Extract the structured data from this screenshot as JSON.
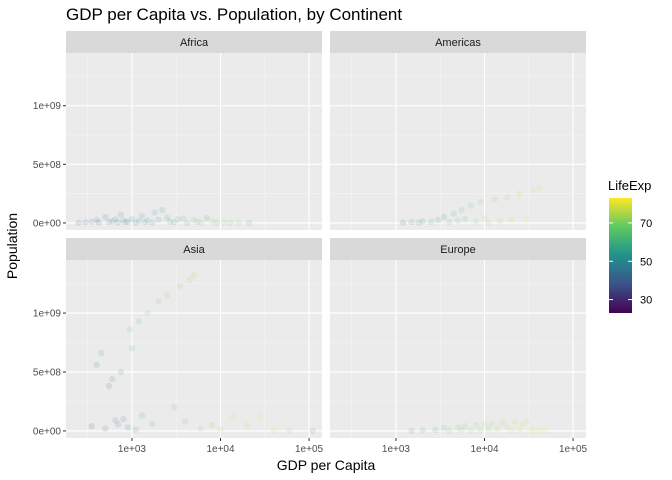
{
  "chart_data": {
    "type": "scatter",
    "title": "GDP per Capita vs. Population, by Continent",
    "xlabel": "GDP per Capita",
    "ylabel": "Population",
    "x_scale": "log10",
    "xlim": [
      180,
      140000
    ],
    "ylim": [
      -60000000,
      1450000000
    ],
    "x_ticks": [
      1000,
      10000,
      100000
    ],
    "x_tick_labels": [
      "1e+03",
      "1e+04",
      "1e+05"
    ],
    "y_ticks": [
      0,
      500000000,
      1000000000
    ],
    "y_tick_labels": [
      "0e+00",
      "5e+08",
      "1e+09"
    ],
    "grid": true,
    "point_alpha": 0.12,
    "legend": {
      "title": "LifeExp",
      "placement": "right",
      "type": "colorbar",
      "palette": "viridis",
      "range": [
        23,
        83
      ],
      "breaks": [
        30,
        50,
        70
      ],
      "colors": [
        "#440154",
        "#3b528b",
        "#21918c",
        "#5ec962",
        "#fde725"
      ]
    },
    "panels": [
      {
        "name": "Africa",
        "points": [
          {
            "x": 250,
            "y": 3200000,
            "life": 38
          },
          {
            "x": 300,
            "y": 6500000,
            "life": 40
          },
          {
            "x": 350,
            "y": 12000000,
            "life": 42
          },
          {
            "x": 400,
            "y": 25000000,
            "life": 44
          },
          {
            "x": 420,
            "y": 5000000,
            "life": 39
          },
          {
            "x": 500,
            "y": 50000000,
            "life": 45
          },
          {
            "x": 550,
            "y": 9000000,
            "life": 46
          },
          {
            "x": 600,
            "y": 15000000,
            "life": 47
          },
          {
            "x": 650,
            "y": 30000000,
            "life": 48
          },
          {
            "x": 700,
            "y": 4000000,
            "life": 43
          },
          {
            "x": 750,
            "y": 70000000,
            "life": 46
          },
          {
            "x": 800,
            "y": 20000000,
            "life": 50
          },
          {
            "x": 850,
            "y": 8000000,
            "life": 48
          },
          {
            "x": 900,
            "y": 11000000,
            "life": 49
          },
          {
            "x": 1000,
            "y": 35000000,
            "life": 51
          },
          {
            "x": 1100,
            "y": 2500000,
            "life": 47
          },
          {
            "x": 1200,
            "y": 18000000,
            "life": 52
          },
          {
            "x": 1300,
            "y": 60000000,
            "life": 53
          },
          {
            "x": 1400,
            "y": 7000000,
            "life": 50
          },
          {
            "x": 1500,
            "y": 22000000,
            "life": 54
          },
          {
            "x": 1700,
            "y": 3000000,
            "life": 52
          },
          {
            "x": 1800,
            "y": 90000000,
            "life": 49
          },
          {
            "x": 2000,
            "y": 28000000,
            "life": 55
          },
          {
            "x": 2200,
            "y": 110000000,
            "life": 47
          },
          {
            "x": 2500,
            "y": 45000000,
            "life": 56
          },
          {
            "x": 2700,
            "y": 12000000,
            "life": 58
          },
          {
            "x": 3000,
            "y": 5000000,
            "life": 59
          },
          {
            "x": 3300,
            "y": 31000000,
            "life": 62
          },
          {
            "x": 3800,
            "y": 40000000,
            "life": 64
          },
          {
            "x": 4200,
            "y": 1500000,
            "life": 60
          },
          {
            "x": 5000,
            "y": 25000000,
            "life": 66
          },
          {
            "x": 5500,
            "y": 9000000,
            "life": 65
          },
          {
            "x": 6000,
            "y": 2000000,
            "life": 68
          },
          {
            "x": 7000,
            "y": 43000000,
            "life": 53
          },
          {
            "x": 8000,
            "y": 15000000,
            "life": 70
          },
          {
            "x": 9000,
            "y": 1200000,
            "life": 62
          },
          {
            "x": 11000,
            "y": 5500000,
            "life": 72
          },
          {
            "x": 13000,
            "y": 1000000,
            "life": 67
          },
          {
            "x": 16000,
            "y": 700000,
            "life": 72
          },
          {
            "x": 21000,
            "y": 600000,
            "life": 58
          }
        ]
      },
      {
        "name": "Americas",
        "points": [
          {
            "x": 1200,
            "y": 3000000,
            "life": 40
          },
          {
            "x": 1500,
            "y": 8000000,
            "life": 46
          },
          {
            "x": 1800,
            "y": 4000000,
            "life": 50
          },
          {
            "x": 2000,
            "y": 15000000,
            "life": 51
          },
          {
            "x": 2500,
            "y": 10000000,
            "life": 55
          },
          {
            "x": 3000,
            "y": 25000000,
            "life": 56
          },
          {
            "x": 3500,
            "y": 53000000,
            "life": 52
          },
          {
            "x": 4000,
            "y": 7000000,
            "life": 60
          },
          {
            "x": 4500,
            "y": 80000000,
            "life": 57
          },
          {
            "x": 5000,
            "y": 20000000,
            "life": 62
          },
          {
            "x": 5500,
            "y": 110000000,
            "life": 62
          },
          {
            "x": 6000,
            "y": 35000000,
            "life": 65
          },
          {
            "x": 7000,
            "y": 150000000,
            "life": 66
          },
          {
            "x": 8000,
            "y": 12000000,
            "life": 69
          },
          {
            "x": 9000,
            "y": 180000000,
            "life": 71
          },
          {
            "x": 10000,
            "y": 40000000,
            "life": 72
          },
          {
            "x": 11000,
            "y": 3500000,
            "life": 74
          },
          {
            "x": 13000,
            "y": 200000000,
            "life": 72
          },
          {
            "x": 15000,
            "y": 15000000,
            "life": 75
          },
          {
            "x": 18000,
            "y": 220000000,
            "life": 74
          },
          {
            "x": 20000,
            "y": 28000000,
            "life": 78
          },
          {
            "x": 25000,
            "y": 250000000,
            "life": 76
          },
          {
            "x": 30000,
            "y": 32000000,
            "life": 80
          },
          {
            "x": 36000,
            "y": 280000000,
            "life": 77
          },
          {
            "x": 42000,
            "y": 300000000,
            "life": 78
          }
        ]
      },
      {
        "name": "Asia",
        "points": [
          {
            "x": 350,
            "y": 40000000,
            "life": 32
          },
          {
            "x": 400,
            "y": 560000000,
            "life": 45
          },
          {
            "x": 450,
            "y": 660000000,
            "life": 50
          },
          {
            "x": 500,
            "y": 20000000,
            "life": 40
          },
          {
            "x": 550,
            "y": 380000000,
            "life": 38
          },
          {
            "x": 600,
            "y": 440000000,
            "life": 45
          },
          {
            "x": 650,
            "y": 90000000,
            "life": 43
          },
          {
            "x": 700,
            "y": 55000000,
            "life": 44
          },
          {
            "x": 750,
            "y": 500000000,
            "life": 50
          },
          {
            "x": 800,
            "y": 100000000,
            "life": 42
          },
          {
            "x": 900,
            "y": 30000000,
            "life": 48
          },
          {
            "x": 950,
            "y": 860000000,
            "life": 63
          },
          {
            "x": 1000,
            "y": 700000000,
            "life": 60
          },
          {
            "x": 1100,
            "y": 10000000,
            "life": 50
          },
          {
            "x": 1200,
            "y": 930000000,
            "life": 65
          },
          {
            "x": 1300,
            "y": 130000000,
            "life": 55
          },
          {
            "x": 1500,
            "y": 1000000000,
            "life": 67
          },
          {
            "x": 1700,
            "y": 60000000,
            "life": 58
          },
          {
            "x": 2000,
            "y": 1100000000,
            "life": 68
          },
          {
            "x": 2500,
            "y": 1150000000,
            "life": 70
          },
          {
            "x": 3000,
            "y": 200000000,
            "life": 62
          },
          {
            "x": 3500,
            "y": 1230000000,
            "life": 71
          },
          {
            "x": 4000,
            "y": 80000000,
            "life": 65
          },
          {
            "x": 4500,
            "y": 1280000000,
            "life": 72
          },
          {
            "x": 5000,
            "y": 1320000000,
            "life": 73
          },
          {
            "x": 6000,
            "y": 20000000,
            "life": 70
          },
          {
            "x": 8000,
            "y": 50000000,
            "life": 71
          },
          {
            "x": 10000,
            "y": 15000000,
            "life": 74
          },
          {
            "x": 14000,
            "y": 120000000,
            "life": 78
          },
          {
            "x": 20000,
            "y": 45000000,
            "life": 76
          },
          {
            "x": 28000,
            "y": 125000000,
            "life": 80
          },
          {
            "x": 40000,
            "y": 5000000,
            "life": 78
          },
          {
            "x": 60000,
            "y": 2000000,
            "life": 75
          },
          {
            "x": 110000,
            "y": 1000000,
            "life": 58
          }
        ]
      },
      {
        "name": "Europe",
        "points": [
          {
            "x": 1500,
            "y": 1500000,
            "life": 55
          },
          {
            "x": 2000,
            "y": 6000000,
            "life": 60
          },
          {
            "x": 2800,
            "y": 8000000,
            "life": 58
          },
          {
            "x": 3500,
            "y": 25000000,
            "life": 64
          },
          {
            "x": 4000,
            "y": 3500000,
            "life": 66
          },
          {
            "x": 5000,
            "y": 30000000,
            "life": 68
          },
          {
            "x": 5500,
            "y": 10000000,
            "life": 67
          },
          {
            "x": 6000,
            "y": 40000000,
            "life": 69
          },
          {
            "x": 7000,
            "y": 4500000,
            "life": 70
          },
          {
            "x": 8000,
            "y": 50000000,
            "life": 70
          },
          {
            "x": 9000,
            "y": 9000000,
            "life": 71
          },
          {
            "x": 10000,
            "y": 55000000,
            "life": 72
          },
          {
            "x": 11000,
            "y": 15000000,
            "life": 72
          },
          {
            "x": 12000,
            "y": 60000000,
            "life": 73
          },
          {
            "x": 14000,
            "y": 20000000,
            "life": 74
          },
          {
            "x": 16000,
            "y": 70000000,
            "life": 75
          },
          {
            "x": 18000,
            "y": 38000000,
            "life": 76
          },
          {
            "x": 20000,
            "y": 5000000,
            "life": 77
          },
          {
            "x": 22000,
            "y": 75000000,
            "life": 77
          },
          {
            "x": 25000,
            "y": 10000000,
            "life": 78
          },
          {
            "x": 27000,
            "y": 60000000,
            "life": 79
          },
          {
            "x": 30000,
            "y": 80000000,
            "life": 79
          },
          {
            "x": 33000,
            "y": 8000000,
            "life": 80
          },
          {
            "x": 36000,
            "y": 4500000,
            "life": 81
          },
          {
            "x": 42000,
            "y": 300000,
            "life": 81
          },
          {
            "x": 48000,
            "y": 4500000,
            "life": 80
          }
        ]
      }
    ]
  }
}
